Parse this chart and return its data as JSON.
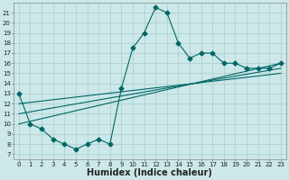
{
  "title": "",
  "xlabel": "Humidex (Indice chaleur)",
  "ylabel": "",
  "background_color": "#cce8e8",
  "grid_color": "#aacccc",
  "line_color": "#006666",
  "xlim": [
    -0.5,
    23.5
  ],
  "ylim": [
    6.5,
    22
  ],
  "xticks": [
    0,
    1,
    2,
    3,
    4,
    5,
    6,
    7,
    8,
    9,
    10,
    11,
    12,
    13,
    14,
    15,
    16,
    17,
    18,
    19,
    20,
    21,
    22,
    23
  ],
  "yticks": [
    7,
    8,
    9,
    10,
    11,
    12,
    13,
    14,
    15,
    16,
    17,
    18,
    19,
    20,
    21
  ],
  "series1_x": [
    0,
    1,
    2,
    3,
    4,
    5,
    6,
    7,
    8,
    9,
    10,
    11,
    12,
    13,
    14,
    15,
    16,
    17,
    18,
    19,
    20,
    21,
    22,
    23
  ],
  "series1_y": [
    13,
    10,
    9.5,
    8.5,
    8,
    7.5,
    8,
    8.5,
    8,
    13.5,
    17.5,
    19,
    21.5,
    21,
    18,
    16.5,
    17,
    17,
    16,
    16,
    15.5,
    15.5,
    15.5,
    16
  ],
  "series2_x": [
    0,
    23
  ],
  "series2_y": [
    10,
    16
  ],
  "series3_x": [
    0,
    23
  ],
  "series3_y": [
    11,
    15.5
  ],
  "series4_x": [
    0,
    23
  ],
  "series4_y": [
    12,
    15
  ],
  "markersize": 2.5,
  "linewidth": 0.8,
  "xlabel_fontsize": 7,
  "tick_fontsize": 5
}
